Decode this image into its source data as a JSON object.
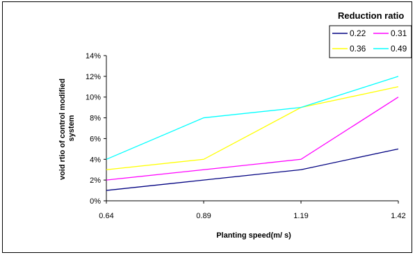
{
  "chart_data": {
    "type": "line",
    "title": "",
    "xlabel": "Planting speed(m/ s)",
    "ylabel_lines": [
      "void rtio of control modified",
      "system"
    ],
    "categories": [
      "0.64",
      "0.89",
      "1.19",
      "1.42"
    ],
    "y_ticks": [
      "0%",
      "2%",
      "4%",
      "6%",
      "8%",
      "10%",
      "12%",
      "14%"
    ],
    "ylim": [
      0,
      14
    ],
    "y_unit": "%",
    "grid": false,
    "legend": {
      "title": "Reduction ratio",
      "placement": "top-right"
    },
    "series": [
      {
        "name": "0.22",
        "color": "#000080",
        "values": [
          1,
          2,
          3,
          5
        ]
      },
      {
        "name": "0.31",
        "color": "#FF00FF",
        "values": [
          2,
          3,
          4,
          10
        ]
      },
      {
        "name": "0.36",
        "color": "#FFFF00",
        "values": [
          3,
          4,
          9,
          11
        ]
      },
      {
        "name": "0.49",
        "color": "#00FFFF",
        "values": [
          4,
          8,
          9,
          12
        ]
      }
    ]
  }
}
